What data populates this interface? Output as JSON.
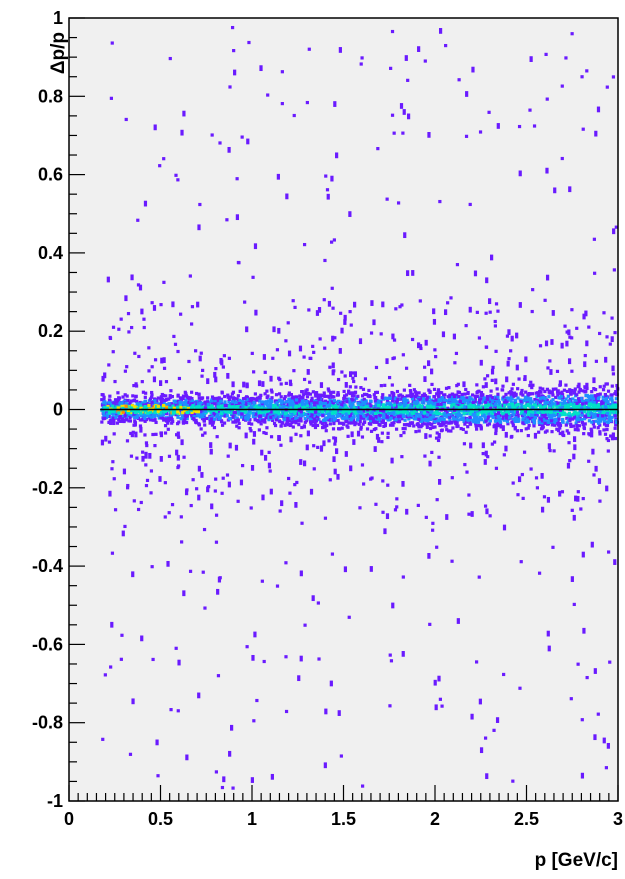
{
  "chart_data": {
    "type": "heatmap",
    "title": "",
    "xlabel": "p [GeV/c]",
    "ylabel": "Δp/p",
    "xlim": [
      0,
      3
    ],
    "ylim": [
      -1,
      1
    ],
    "x_ticks": [
      0,
      0.5,
      1,
      1.5,
      2,
      2.5,
      3
    ],
    "x_tick_labels": [
      "0",
      "0.5",
      "1",
      "1.5",
      "2",
      "2.5",
      "3"
    ],
    "y_ticks": [
      1,
      0.8,
      0.6,
      0.4,
      0.2,
      0,
      -0.2,
      -0.4,
      -0.6,
      -0.8,
      -1
    ],
    "y_tick_labels": [
      "1",
      "0.8",
      "0.6",
      "0.4",
      "0.2",
      "0",
      "-0.2",
      "-0.4",
      "-0.6",
      "-0.8",
      "-1"
    ],
    "x_data_start": 0.17,
    "grid": false,
    "reference_line_y": 0,
    "core_band": {
      "center": 0,
      "halfwidth": 0.05
    },
    "high_density_region": {
      "x": [
        0.2,
        0.7
      ],
      "y": [
        -0.01,
        0.01
      ]
    },
    "colors": {
      "background": "#f0f0f0",
      "low": "#6a1aff",
      "mid": "#1e8fff",
      "high": "#00e0c8",
      "peak": "#f5e000",
      "max": "#ff8a00"
    }
  }
}
